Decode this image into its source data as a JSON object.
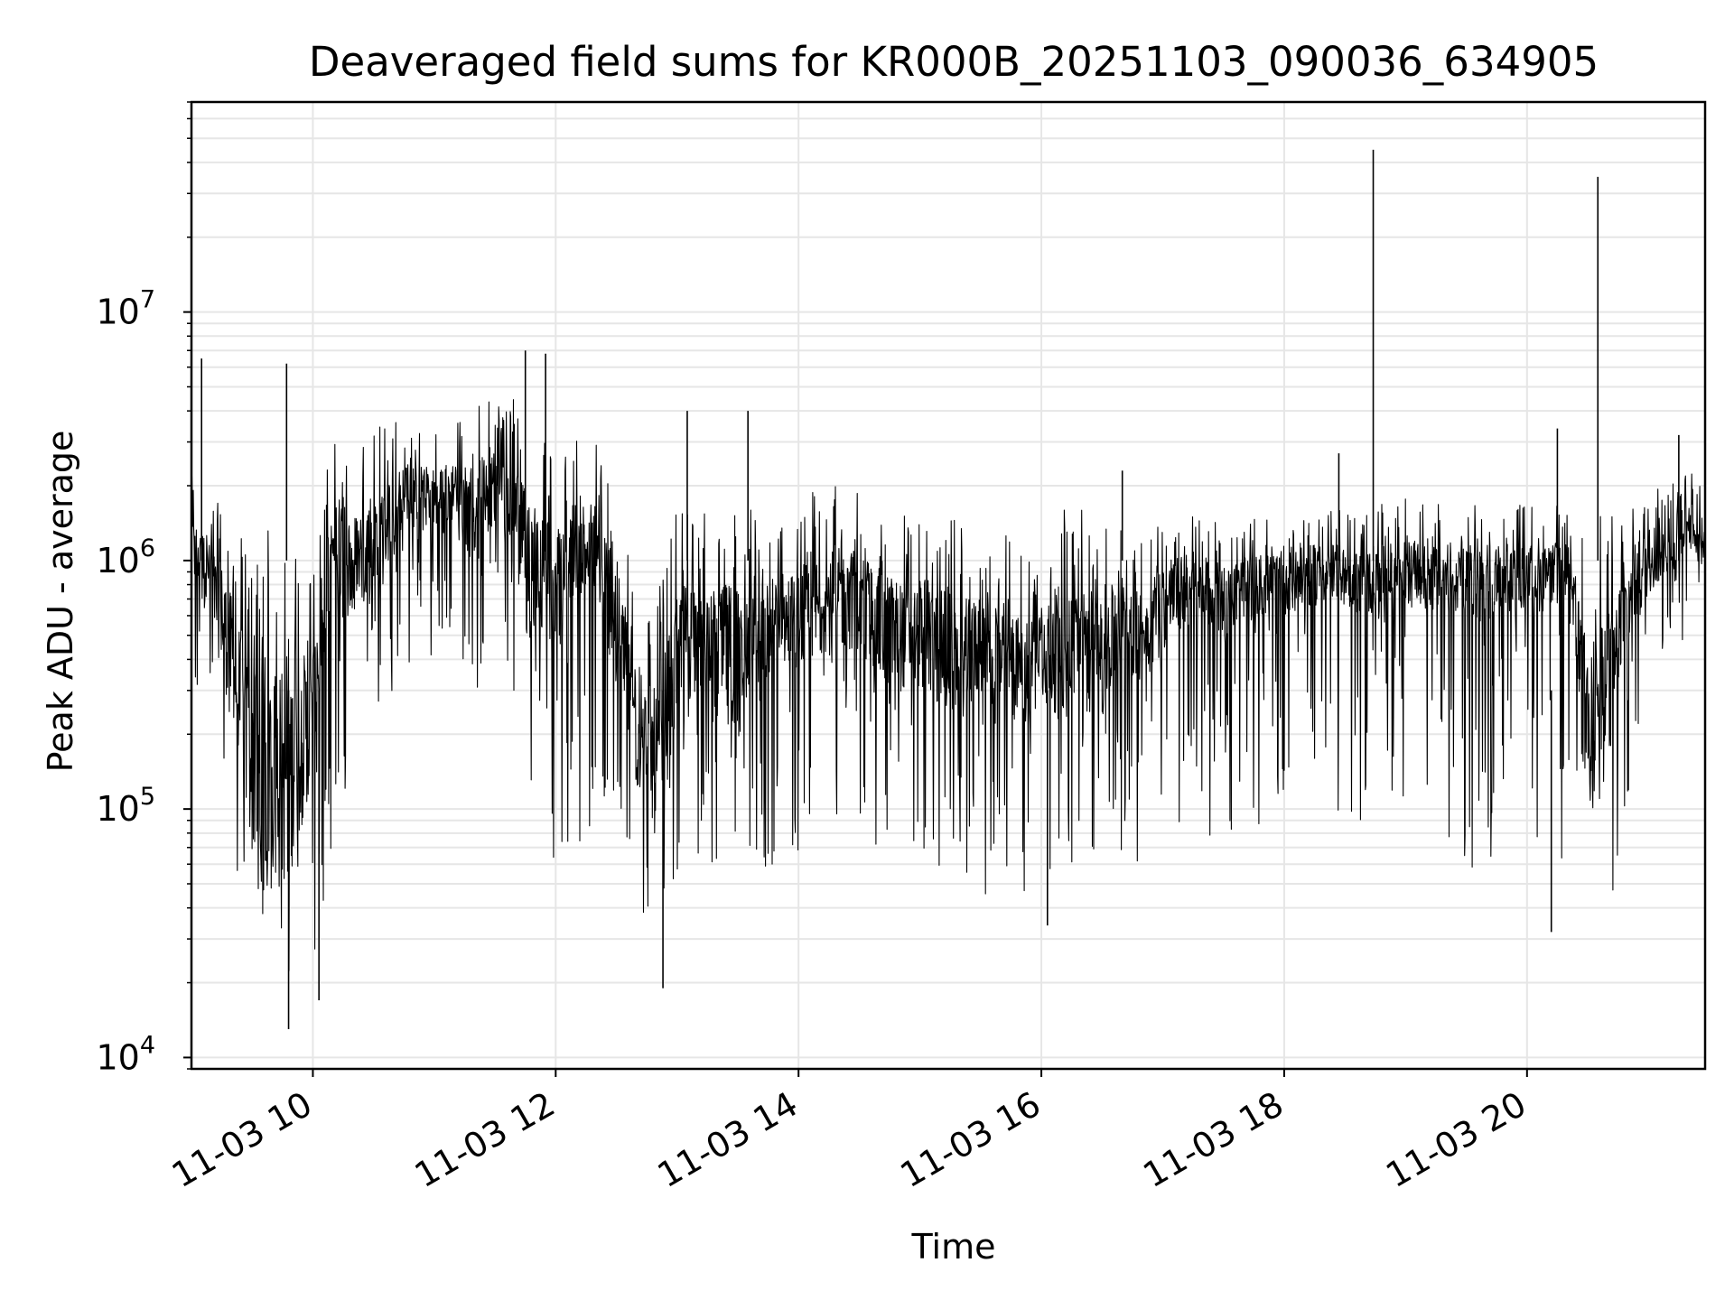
{
  "chart_data": {
    "type": "line",
    "title": "Deaveraged field sums for KR000B_20251103_090036_634905",
    "xlabel": "Time",
    "ylabel": "Peak ADU - average",
    "yscale": "log",
    "ylim": [
      9000,
      70000000
    ],
    "xlim": [
      "2025-11-03 09:00",
      "2025-11-03 21:28"
    ],
    "grid": true,
    "line_color": "#000000",
    "grid_color": "#e6e6e6",
    "x_ticks": [
      {
        "value": "2025-11-03 10:00",
        "label": "11-03 10"
      },
      {
        "value": "2025-11-03 12:00",
        "label": "11-03 12"
      },
      {
        "value": "2025-11-03 14:00",
        "label": "11-03 14"
      },
      {
        "value": "2025-11-03 16:00",
        "label": "11-03 16"
      },
      {
        "value": "2025-11-03 18:00",
        "label": "11-03 18"
      },
      {
        "value": "2025-11-03 20:00",
        "label": "11-03 20"
      }
    ],
    "y_ticks": [
      {
        "value": 10000,
        "base": "10",
        "exp": "4"
      },
      {
        "value": 100000,
        "base": "10",
        "exp": "5"
      },
      {
        "value": 1000000,
        "base": "10",
        "exp": "6"
      },
      {
        "value": 10000000,
        "base": "10",
        "exp": "7"
      }
    ],
    "series": [
      {
        "x": [
          "2025-11-03 09:00",
          "2025-11-03 09:10",
          "2025-11-03 09:20",
          "2025-11-03 09:30",
          "2025-11-03 09:40",
          "2025-11-03 09:50",
          "2025-11-03 10:00",
          "2025-11-03 10:10",
          "2025-11-03 10:20",
          "2025-11-03 10:30",
          "2025-11-03 10:40",
          "2025-11-03 10:50",
          "2025-11-03 11:00",
          "2025-11-03 11:10",
          "2025-11-03 11:20",
          "2025-11-03 11:30",
          "2025-11-03 11:40",
          "2025-11-03 11:50",
          "2025-11-03 12:00",
          "2025-11-03 12:10",
          "2025-11-03 12:20",
          "2025-11-03 12:30",
          "2025-11-03 12:40",
          "2025-11-03 12:50",
          "2025-11-03 13:00",
          "2025-11-03 13:10",
          "2025-11-03 13:20",
          "2025-11-03 13:30",
          "2025-11-03 13:40",
          "2025-11-03 13:50",
          "2025-11-03 14:00",
          "2025-11-03 14:10",
          "2025-11-03 14:20",
          "2025-11-03 14:30",
          "2025-11-03 14:40",
          "2025-11-03 14:50",
          "2025-11-03 15:00",
          "2025-11-03 15:10",
          "2025-11-03 15:20",
          "2025-11-03 15:30",
          "2025-11-03 15:40",
          "2025-11-03 15:50",
          "2025-11-03 16:00",
          "2025-11-03 16:10",
          "2025-11-03 16:20",
          "2025-11-03 16:30",
          "2025-11-03 16:40",
          "2025-11-03 16:50",
          "2025-11-03 17:00",
          "2025-11-03 17:10",
          "2025-11-03 17:20",
          "2025-11-03 17:30",
          "2025-11-03 17:40",
          "2025-11-03 17:50",
          "2025-11-03 18:00",
          "2025-11-03 18:10",
          "2025-11-03 18:20",
          "2025-11-03 18:30",
          "2025-11-03 18:40",
          "2025-11-03 18:45",
          "2025-11-03 18:50",
          "2025-11-03 19:00",
          "2025-11-03 19:10",
          "2025-11-03 19:20",
          "2025-11-03 19:30",
          "2025-11-03 19:40",
          "2025-11-03 19:50",
          "2025-11-03 20:00",
          "2025-11-03 20:10",
          "2025-11-03 20:20",
          "2025-11-03 20:30",
          "2025-11-03 20:35",
          "2025-11-03 20:40",
          "2025-11-03 20:50",
          "2025-11-03 21:00",
          "2025-11-03 21:10",
          "2025-11-03 21:20",
          "2025-11-03 21:28"
        ],
        "y_center": [
          1100000,
          800000,
          400000,
          150000,
          120000,
          150000,
          250000,
          1200000,
          900000,
          1300000,
          1500000,
          1700000,
          1800000,
          1900000,
          1500000,
          2000000,
          1500000,
          900000,
          700000,
          1200000,
          1000000,
          600000,
          200000,
          150000,
          400000,
          550000,
          400000,
          450000,
          500000,
          550000,
          550000,
          650000,
          700000,
          700000,
          550000,
          500000,
          500000,
          450000,
          400000,
          450000,
          400000,
          350000,
          400000,
          450000,
          500000,
          400000,
          550000,
          500000,
          650000,
          750000,
          750000,
          700000,
          750000,
          800000,
          800000,
          850000,
          900000,
          850000,
          800000,
          850000,
          850000,
          900000,
          850000,
          850000,
          800000,
          800000,
          850000,
          850000,
          850000,
          900000,
          200000,
          250000,
          300000,
          700000,
          1000000,
          1200000,
          1300000,
          1200000
        ],
        "y_high": [
          2200000,
          1800000,
          1500000,
          1000000,
          1500000,
          1200000,
          1000000,
          3500000,
          3000000,
          3500000,
          3800000,
          3800000,
          3500000,
          3500000,
          4500000,
          4500000,
          5000000,
          3500000,
          2500000,
          3200000,
          3500000,
          2000000,
          700000,
          700000,
          1600000,
          2000000,
          1600000,
          2000000,
          1700000,
          1700000,
          1800000,
          2000000,
          2000000,
          2000000,
          1800000,
          1600000,
          1500000,
          1600000,
          1400000,
          1200000,
          1400000,
          1100000,
          1300000,
          1700000,
          1700000,
          1300000,
          1500000,
          1400000,
          1600000,
          1600000,
          1500000,
          1500000,
          1500000,
          1500000,
          1600000,
          1600000,
          1700000,
          1600000,
          1600000,
          1700000,
          1700000,
          1800000,
          1700000,
          1700000,
          1700000,
          1700000,
          1700000,
          1700000,
          1700000,
          1700000,
          1200000,
          1500000,
          1600000,
          1800000,
          2000000,
          2300000,
          2300000,
          2000000
        ],
        "y_low": [
          300000,
          200000,
          60000,
          30000,
          25000,
          20000,
          25000,
          60000,
          100000,
          150000,
          300000,
          300000,
          400000,
          400000,
          300000,
          300000,
          200000,
          80000,
          50000,
          40000,
          100000,
          60000,
          30000,
          25000,
          50000,
          60000,
          60000,
          60000,
          55000,
          55000,
          60000,
          70000,
          80000,
          80000,
          70000,
          60000,
          60000,
          55000,
          50000,
          45000,
          45000,
          40000,
          45000,
          50000,
          60000,
          55000,
          60000,
          60000,
          70000,
          80000,
          80000,
          70000,
          75000,
          80000,
          80000,
          80000,
          80000,
          75000,
          80000,
          90000,
          70000,
          70000,
          60000,
          55000,
          55000,
          60000,
          70000,
          70000,
          70000,
          60000,
          40000,
          40000,
          40000,
          60000,
          300000,
          400000,
          500000,
          400000
        ]
      }
    ],
    "spikes": [
      {
        "x": "2025-11-03 09:05",
        "y": 6500000
      },
      {
        "x": "2025-11-03 09:47",
        "y": 6200000
      },
      {
        "x": "2025-11-03 11:45",
        "y": 7000000
      },
      {
        "x": "2025-11-03 11:55",
        "y": 6800000
      },
      {
        "x": "2025-11-03 13:05",
        "y": 4000000
      },
      {
        "x": "2025-11-03 13:35",
        "y": 4000000
      },
      {
        "x": "2025-11-03 16:40",
        "y": 2300000
      },
      {
        "x": "2025-11-03 18:27",
        "y": 2700000
      },
      {
        "x": "2025-11-03 18:44",
        "y": 45000000
      },
      {
        "x": "2025-11-03 20:15",
        "y": 3400000
      },
      {
        "x": "2025-11-03 20:35",
        "y": 35000000
      },
      {
        "x": "2025-11-03 21:15",
        "y": 3200000
      }
    ],
    "dips": [
      {
        "x": "2025-11-03 09:48",
        "y": 13000
      },
      {
        "x": "2025-11-03 10:03",
        "y": 17000
      },
      {
        "x": "2025-11-03 12:53",
        "y": 19000
      },
      {
        "x": "2025-11-03 16:03",
        "y": 34000
      },
      {
        "x": "2025-11-03 20:12",
        "y": 32000
      }
    ]
  }
}
